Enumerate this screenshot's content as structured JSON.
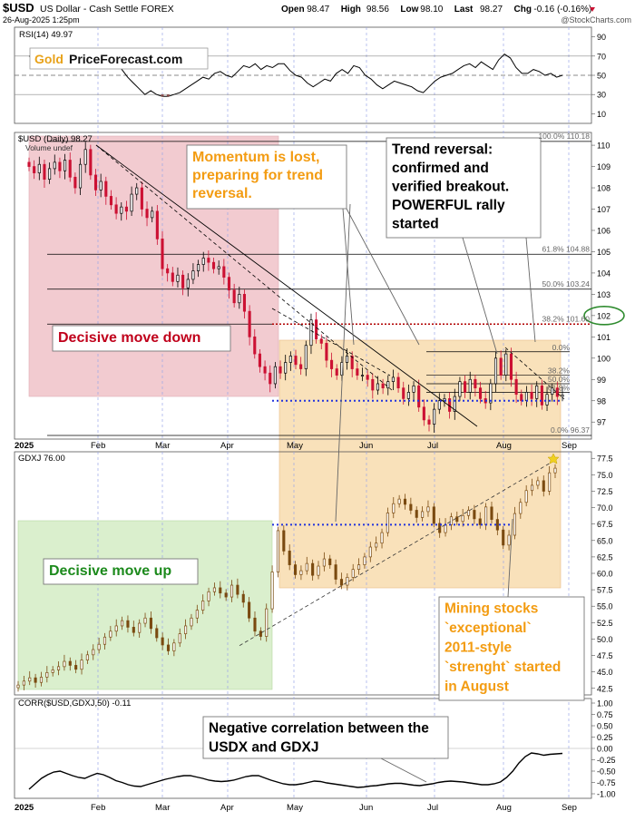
{
  "header": {
    "symbol": "$USD",
    "name": "US Dollar - Cash Settle",
    "exchange": "FOREX",
    "date": "26-Aug-2025 1:25pm",
    "ohlc": [
      {
        "label": "Open",
        "value": "98.47"
      },
      {
        "label": "High",
        "value": "98.56"
      },
      {
        "label": "Low",
        "value": "98.10"
      },
      {
        "label": "Last",
        "value": "98.27"
      },
      {
        "label": "Chg",
        "value": "-0.16 (-0.16%)"
      }
    ],
    "watermark": "@StockCharts.com"
  },
  "logo": {
    "part1": "Gold",
    "part2": "PriceForecast.com"
  },
  "colors": {
    "red_candle": "#cc1133",
    "black_candle": "#000000",
    "red_zone": "#f0c3c8",
    "orange_zone": "#f8dcae",
    "green_zone": "#d4edc5",
    "annotation_orange": "#f39c12",
    "annotation_red": "#c0001b",
    "annotation_green": "#1c8a1c",
    "blue_grid": "#2233dd",
    "fib_red": "#b00000",
    "gdxj_candle": "#7a4a10",
    "circle_green": "#2e8b2e"
  },
  "chart_data": [
    {
      "type": "line",
      "title": "RSI(14) 49.97",
      "y_ticks": [
        "90",
        "70",
        "50",
        "30",
        "10"
      ],
      "ylim": [
        0,
        100
      ],
      "reference_lines": [
        70,
        50,
        30
      ],
      "series": [
        {
          "values": [
            70,
            68,
            62,
            60,
            64,
            69,
            73,
            66,
            60,
            58,
            60,
            64,
            70,
            74,
            72,
            64,
            56,
            48,
            42,
            36,
            30,
            34,
            30,
            28,
            28,
            30,
            32,
            36,
            40,
            44,
            48,
            46,
            52,
            54,
            50,
            48,
            54,
            60,
            58,
            62,
            56,
            60,
            58,
            62,
            62,
            55,
            50,
            48,
            42,
            38,
            42,
            46,
            44,
            52,
            56,
            52,
            60,
            58,
            50,
            46,
            40,
            36,
            40,
            44,
            42,
            40,
            38,
            34,
            32,
            38,
            44,
            48,
            50,
            52,
            56,
            60,
            62,
            58,
            64,
            60,
            56,
            66,
            72,
            68,
            58,
            52,
            52,
            56,
            54,
            50,
            52,
            48,
            50
          ]
        }
      ]
    },
    {
      "type": "candlestick",
      "title": "$USD (Daily) 98.27",
      "legend": "Volume undef",
      "x_labels": [
        "2025",
        "Feb",
        "Mar",
        "Apr",
        "May",
        "Jun",
        "Jul",
        "Aug",
        "Sep"
      ],
      "y_ticks": [
        "110",
        "109",
        "108",
        "107",
        "106",
        "105",
        "104",
        "103",
        "102",
        "101",
        "100",
        "99",
        "98",
        "97"
      ],
      "ylim": [
        96.2,
        110.6
      ],
      "closes": [
        109.0,
        108.7,
        109.1,
        108.4,
        108.9,
        109.2,
        108.8,
        109.3,
        108.5,
        108.0,
        109.1,
        109.8,
        108.6,
        107.9,
        108.3,
        107.6,
        107.2,
        106.8,
        107.1,
        106.9,
        107.7,
        108.0,
        107.0,
        106.6,
        106.9,
        105.6,
        104.2,
        104.0,
        103.6,
        103.9,
        103.3,
        103.7,
        104.1,
        104.4,
        104.7,
        104.5,
        104.2,
        104.3,
        103.8,
        103.2,
        102.6,
        103.0,
        102.2,
        101.0,
        100.2,
        99.6,
        99.3,
        98.8,
        99.6,
        99.3,
        99.8,
        100.1,
        99.7,
        99.5,
        100.6,
        101.8,
        100.9,
        100.7,
        99.9,
        99.5,
        99.2,
        99.8,
        100.1,
        99.5,
        99.2,
        99.2,
        99.0,
        98.5,
        98.8,
        98.6,
        98.9,
        99.1,
        98.6,
        98.1,
        98.4,
        98.7,
        97.7,
        97.1,
        96.9,
        97.6,
        98.0,
        98.1,
        97.5,
        98.2,
        98.9,
        98.4,
        99.0,
        98.6,
        98.1,
        97.9,
        98.8,
        100.0,
        99.2,
        100.2,
        99.0,
        98.3,
        98.0,
        98.4,
        98.1,
        98.7,
        97.8,
        98.3,
        98.6,
        98.2,
        98.27
      ],
      "fib_levels": [
        {
          "label": "100.0% 110.18",
          "value": 110.18
        },
        {
          "label": "61.8% 104.88",
          "value": 104.88
        },
        {
          "label": "50.0% 103.24",
          "value": 103.24
        },
        {
          "label": "38.2% 101.60",
          "value": 101.6
        },
        {
          "label": "0.0% 96.37",
          "value": 96.37
        }
      ],
      "fib_levels_recent": [
        {
          "label": "0.0%",
          "value": 100.3
        },
        {
          "label": "38.2%",
          "value": 99.2
        },
        {
          "label": "50.0%",
          "value": 98.8
        },
        {
          "label": "61.8%",
          "value": 98.4
        }
      ],
      "horizontal_lines": [
        98.0
      ],
      "highlight_level": 102.0
    },
    {
      "type": "candlestick",
      "title": "GDXJ 76.00",
      "y_ticks": [
        "77.5",
        "75.0",
        "72.5",
        "70.0",
        "67.5",
        "65.0",
        "62.5",
        "60.0",
        "57.5",
        "55.0",
        "52.5",
        "50.0",
        "47.5",
        "45.0",
        "42.5"
      ],
      "ylim": [
        41.5,
        78.5
      ],
      "closes": [
        43.0,
        43.6,
        44.1,
        43.4,
        44.2,
        44.9,
        45.3,
        45.8,
        46.6,
        46.0,
        45.4,
        46.8,
        47.6,
        48.4,
        49.2,
        50.3,
        51.2,
        52.0,
        52.8,
        51.8,
        51.0,
        52.4,
        53.2,
        51.6,
        50.2,
        49.1,
        48.2,
        49.4,
        50.8,
        52.0,
        53.2,
        54.4,
        55.8,
        57.2,
        57.8,
        57.0,
        56.4,
        58.2,
        56.8,
        55.6,
        53.2,
        51.2,
        50.4,
        54.6,
        60.2,
        66.5,
        63.4,
        61.3,
        59.8,
        60.4,
        61.5,
        59.7,
        61.1,
        62.2,
        61.3,
        59.1,
        58.2,
        59.4,
        60.6,
        61.3,
        62.5,
        64.0,
        64.6,
        66.2,
        69.2,
        70.6,
        71.3,
        70.5,
        69.6,
        68.5,
        69.4,
        70.1,
        67.6,
        66.2,
        67.4,
        68.6,
        67.9,
        68.8,
        69.6,
        68.3,
        67.4,
        70.1,
        68.2,
        66.6,
        64.3,
        65.8,
        69.1,
        70.8,
        72.6,
        73.4,
        74.1,
        72.5,
        75.3,
        76.0
      ],
      "horizontal_lines": [
        67.4
      ]
    },
    {
      "type": "line",
      "title": "CORR($USD,GDXJ,50) -0.11",
      "y_ticks": [
        "1.00",
        "0.75",
        "0.50",
        "0.25",
        "0.00",
        "-0.25",
        "-0.50",
        "-0.75",
        "-1.00"
      ],
      "ylim": [
        -1.1,
        1.1
      ],
      "series": [
        {
          "values": [
            -0.9,
            -0.78,
            -0.66,
            -0.58,
            -0.52,
            -0.5,
            -0.55,
            -0.6,
            -0.64,
            -0.66,
            -0.6,
            -0.55,
            -0.58,
            -0.64,
            -0.71,
            -0.75,
            -0.8,
            -0.83,
            -0.84,
            -0.8,
            -0.76,
            -0.72,
            -0.68,
            -0.65,
            -0.62,
            -0.6,
            -0.6,
            -0.63,
            -0.66,
            -0.7,
            -0.72,
            -0.73,
            -0.72,
            -0.7,
            -0.66,
            -0.62,
            -0.6,
            -0.6,
            -0.65,
            -0.7,
            -0.74,
            -0.78,
            -0.8,
            -0.8,
            -0.78,
            -0.75,
            -0.72,
            -0.73,
            -0.76,
            -0.78,
            -0.8,
            -0.82,
            -0.84,
            -0.86,
            -0.85,
            -0.83,
            -0.82,
            -0.8,
            -0.78,
            -0.77,
            -0.77,
            -0.79,
            -0.81,
            -0.82,
            -0.8,
            -0.78,
            -0.75,
            -0.73,
            -0.72,
            -0.73,
            -0.74,
            -0.76,
            -0.78,
            -0.8,
            -0.8,
            -0.78,
            -0.74,
            -0.64,
            -0.5,
            -0.32,
            -0.18,
            -0.1,
            -0.12,
            -0.15,
            -0.13,
            -0.12,
            -0.11
          ]
        }
      ]
    }
  ],
  "annotations": {
    "momentum": "Momentum is lost, preparing for trend reversal.",
    "trend_reversal": "Trend reversal: confirmed and verified breakout. POWERFUL rally started",
    "decisive_down": "Decisive move down",
    "decisive_up": "Decisive move up",
    "mining": "Mining stocks `exceptional` 2011-style `strenght` started in August",
    "negative_corr": "Negative correlation between the USDX and GDXJ"
  }
}
